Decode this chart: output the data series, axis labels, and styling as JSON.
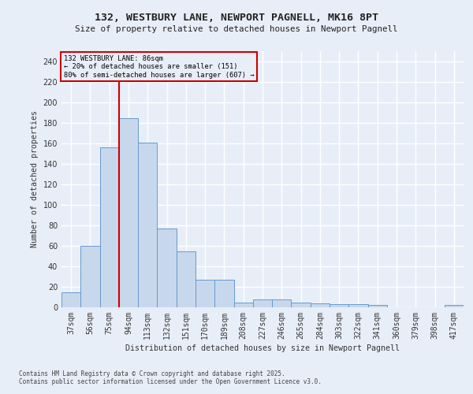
{
  "title_line1": "132, WESTBURY LANE, NEWPORT PAGNELL, MK16 8PT",
  "title_line2": "Size of property relative to detached houses in Newport Pagnell",
  "xlabel": "Distribution of detached houses by size in Newport Pagnell",
  "ylabel": "Number of detached properties",
  "footnote": "Contains HM Land Registry data © Crown copyright and database right 2025.\nContains public sector information licensed under the Open Government Licence v3.0.",
  "bar_color": "#c8d8ec",
  "bar_edge_color": "#6699cc",
  "background_color": "#e8eef8",
  "grid_color": "#ffffff",
  "ann_box_color": "#cc0000",
  "vline_color": "#cc0000",
  "categories": [
    "37sqm",
    "56sqm",
    "75sqm",
    "94sqm",
    "113sqm",
    "132sqm",
    "151sqm",
    "170sqm",
    "189sqm",
    "208sqm",
    "227sqm",
    "246sqm",
    "265sqm",
    "284sqm",
    "303sqm",
    "322sqm",
    "341sqm",
    "360sqm",
    "379sqm",
    "398sqm",
    "417sqm"
  ],
  "values": [
    15,
    60,
    156,
    185,
    161,
    77,
    55,
    27,
    27,
    5,
    8,
    8,
    5,
    4,
    3,
    3,
    2,
    0,
    0,
    0,
    2
  ],
  "annotation_line1": "132 WESTBURY LANE: 86sqm",
  "annotation_line2": "← 20% of detached houses are smaller (151)",
  "annotation_line3": "80% of semi-detached houses are larger (607) →",
  "vline_x": 2.5,
  "ylim_max": 250,
  "yticks": [
    0,
    20,
    40,
    60,
    80,
    100,
    120,
    140,
    160,
    180,
    200,
    220,
    240
  ]
}
